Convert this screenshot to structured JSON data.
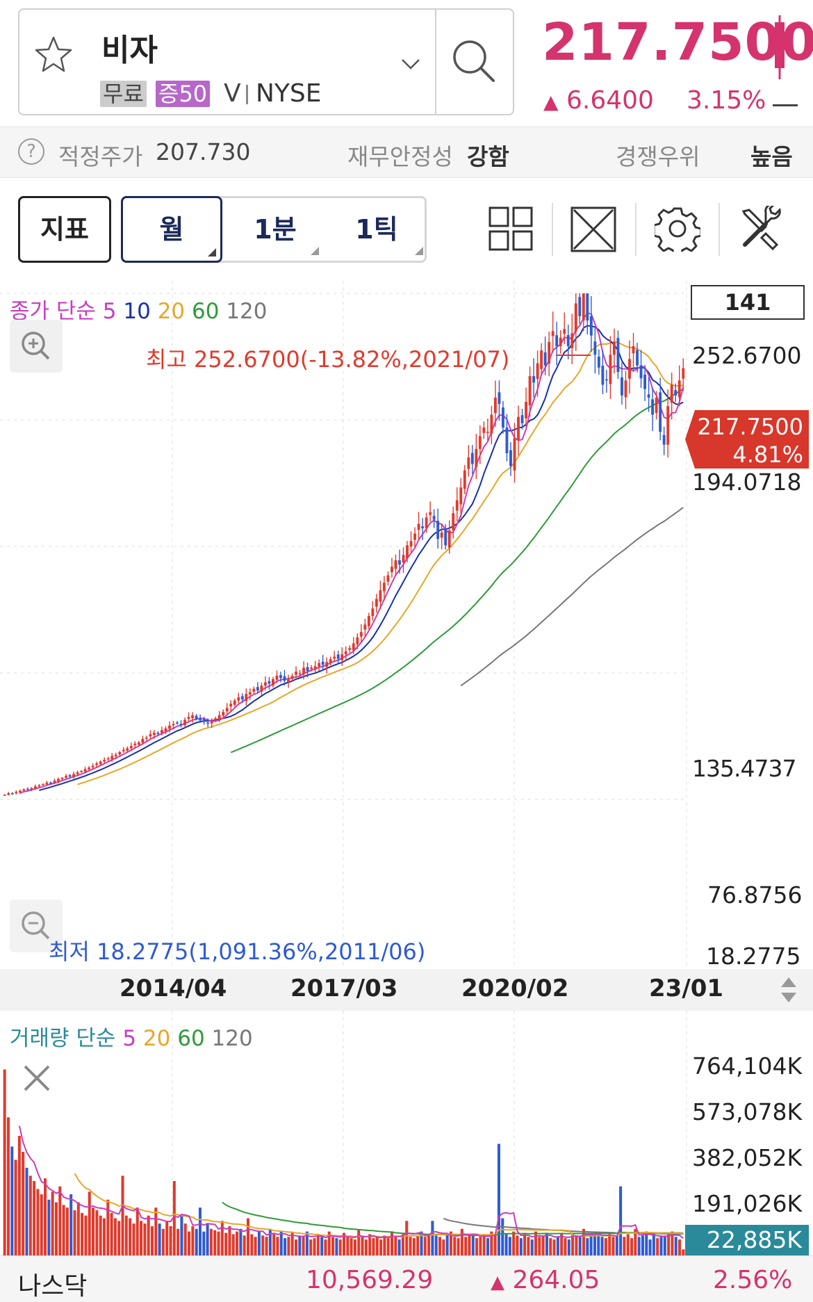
{
  "stock": {
    "name": "비자",
    "badge_free": "무료",
    "badge_margin": "증50",
    "ticker": "V",
    "exchange": "NYSE",
    "price": "217.7500",
    "change": "6.6400",
    "change_pct": "3.15%"
  },
  "info": {
    "fair_price_label": "적정주가",
    "fair_price": "207.730",
    "stability_label": "재무안정성",
    "stability": "강함",
    "competition_label": "경쟁우위",
    "competition": "높음"
  },
  "toolbar": {
    "indicator": "지표",
    "periods": [
      "월",
      "1분",
      "1틱"
    ]
  },
  "colors": {
    "up": "#e03a2c",
    "down": "#2f5bd0",
    "ma5": "#c93cc0",
    "ma10": "#1630a8",
    "ma20": "#e8a628",
    "ma60": "#2e9a3a",
    "ma120": "#777777",
    "accent": "#d5336e"
  },
  "chart_data": [
    {
      "type": "candlestick",
      "legend": {
        "prefix": "종가 단순",
        "periods": [
          "5",
          "10",
          "20",
          "60",
          "120"
        ]
      },
      "count_box": "141",
      "y_ticks": [
        "252.6700",
        "194.0718",
        "135.4737",
        "76.8756",
        "18.2775"
      ],
      "x_ticks": [
        "2014/04",
        "2017/03",
        "2020/02",
        "23/01"
      ],
      "ylim": [
        18.2775,
        252.67
      ],
      "high_annotation": "최고 252.6700(-13.82%,2021/07)",
      "low_annotation": "최저 18.2775(1,091.36%,2011/06)",
      "last_price_tag": "217.7500",
      "last_pct_tag": "4.81%",
      "close_series": [
        18.5,
        19.2,
        19.0,
        19.8,
        20.4,
        21.1,
        21.0,
        21.6,
        22.4,
        22.9,
        23.5,
        24.2,
        24.0,
        25.1,
        25.9,
        26.4,
        27.3,
        27.0,
        28.2,
        29.0,
        29.6,
        30.5,
        31.2,
        32.0,
        33.1,
        34.0,
        34.8,
        35.5,
        36.6,
        37.2,
        38.4,
        39.5,
        40.2,
        41.3,
        42.4,
        43.0,
        44.6,
        45.2,
        46.8,
        47.5,
        46.9,
        48.7,
        49.5,
        50.8,
        51.6,
        52.0,
        51.0,
        53.5,
        54.9,
        55.6,
        54.0,
        53.2,
        52.6,
        51.8,
        52.8,
        54.2,
        55.7,
        57.2,
        59.0,
        61.0,
        62.5,
        64.0,
        63.0,
        65.6,
        66.4,
        68.0,
        67.2,
        69.5,
        71.0,
        70.4,
        72.5,
        74.1,
        73.0,
        71.8,
        72.6,
        74.0,
        76.0,
        75.2,
        77.8,
        76.3,
        77.9,
        78.5,
        80.0,
        79.2,
        80.5,
        81.8,
        83.0,
        82.0,
        84.1,
        85.5,
        87.0,
        89.2,
        92.0,
        94.5,
        98.0,
        102.0,
        105.5,
        110.0,
        114.0,
        117.5,
        121.0,
        125.0,
        128.0,
        126.0,
        130.5,
        135.0,
        137.0,
        140.5,
        145.0,
        143.0,
        148.0,
        150.5,
        147.0,
        138.0,
        141.0,
        135.0,
        142.0,
        150.0,
        156.0,
        162.0,
        170.0,
        176.0,
        173.0,
        180.0,
        186.0,
        190.0,
        188.0,
        196.0,
        204.0,
        201.0,
        190.0,
        178.0,
        172.0,
        185.0,
        195.0,
        192.0,
        202.0,
        214.0,
        211.0,
        220.0,
        226.0,
        219.0,
        230.0,
        235.0,
        228.0,
        232.0,
        236.0,
        228.0,
        234.0,
        248.0,
        242.0,
        252.67,
        240.0,
        233.0,
        224.0,
        218.0,
        210.0,
        212.0,
        224.0,
        230.0,
        216.0,
        205.0,
        212.0,
        222.0,
        228.0,
        219.0,
        213.0,
        208.0,
        204.0,
        196.0,
        204.0,
        188.0,
        182.0,
        200.0,
        210.0,
        205.0,
        212.0,
        217.75
      ],
      "moving_averages": [
        "5",
        "10",
        "20",
        "60",
        "120"
      ]
    },
    {
      "type": "bar",
      "legend": {
        "prefix": "거래량 단순",
        "periods": [
          "5",
          "20",
          "60",
          "120"
        ]
      },
      "y_ticks": [
        "764,104K",
        "573,078K",
        "382,052K",
        "191,026K"
      ],
      "ylim": [
        0,
        764104
      ],
      "last_volume_tag": "22,885K",
      "volume_series_k": [
        700000,
        520000,
        410000,
        360000,
        450000,
        390000,
        330000,
        300000,
        280000,
        250000,
        230000,
        290000,
        210000,
        240000,
        200000,
        260000,
        190000,
        180000,
        230000,
        170000,
        200000,
        160000,
        150000,
        240000,
        180000,
        170000,
        150000,
        140000,
        210000,
        160000,
        140000,
        130000,
        300000,
        150000,
        140000,
        120000,
        180000,
        130000,
        120000,
        150000,
        110000,
        180000,
        120000,
        100000,
        130000,
        110000,
        280000,
        100000,
        150000,
        120000,
        90000,
        110000,
        100000,
        180000,
        90000,
        120000,
        100000,
        95000,
        90000,
        130000,
        85000,
        110000,
        80000,
        90000,
        100000,
        75000,
        140000,
        80000,
        70000,
        90000,
        75000,
        70000,
        100000,
        80000,
        70000,
        90000,
        65000,
        70000,
        85000,
        60000,
        75000,
        70000,
        90000,
        60000,
        65000,
        80000,
        70000,
        60000,
        90000,
        70000,
        65000,
        60000,
        85000,
        70000,
        65000,
        60000,
        95000,
        70000,
        60000,
        80000,
        65000,
        70000,
        60000,
        75000,
        65000,
        90000,
        70000,
        60000,
        80000,
        130000,
        70000,
        65000,
        75000,
        90000,
        70000,
        80000,
        130000,
        75000,
        70000,
        60000,
        80000,
        90000,
        70000,
        65000,
        100000,
        70000,
        80000,
        75000,
        65000,
        70000,
        80000,
        65000,
        90000,
        75000,
        420000,
        140000,
        80000,
        70000,
        90000,
        75000,
        65000,
        80000,
        70000,
        60000,
        90000,
        70000,
        75000,
        80000,
        65000,
        60000,
        70000,
        85000,
        65000,
        60000,
        80000,
        75000,
        70000,
        100000,
        65000,
        80000,
        75000,
        90000,
        70000,
        65000,
        80000,
        70000,
        75000,
        260000,
        70000,
        80000,
        65000,
        100000,
        70000,
        75000,
        90000,
        60000,
        80000,
        65000,
        70000,
        75000,
        80000,
        90000,
        70000,
        60000,
        22885
      ]
    }
  ],
  "footer": {
    "index_name": "나스닥",
    "index_value": "10,569.29",
    "index_change": "264.05",
    "index_pct": "2.56%"
  }
}
